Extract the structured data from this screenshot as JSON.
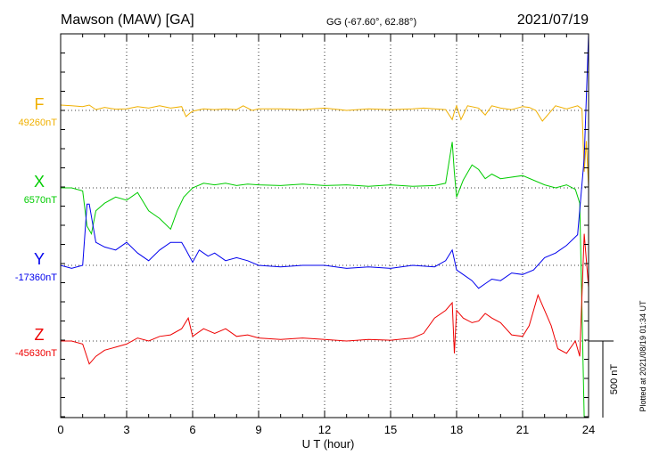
{
  "header": {
    "station": "Mawson (MAW)  [GA]",
    "coords": "GG (-67.60°,  62.88°)",
    "date": "2021/07/19"
  },
  "footer": {
    "plotted": "Plotted at 2021/08/19 01:34  UT"
  },
  "scale": {
    "label": "500 nT",
    "value_nT": 500
  },
  "chart_data": {
    "type": "line",
    "title": "Mawson (MAW)  [GA]",
    "xlabel": "U T (hour)",
    "ylabel": "",
    "xlim": [
      0,
      24
    ],
    "x_ticks": [
      "0",
      "3",
      "6",
      "9",
      "12",
      "15",
      "18",
      "21",
      "24"
    ],
    "grid": true,
    "legend": "left",
    "units": "nT",
    "series": [
      {
        "name": "F",
        "baseline_label": "49260nT",
        "baseline": 49260,
        "color": "#f0b000",
        "x": [
          0,
          0.5,
          1,
          1.3,
          1.6,
          2,
          2.5,
          3,
          3.5,
          4,
          4.5,
          5,
          5.5,
          5.7,
          5.9,
          6,
          6.5,
          7,
          7.5,
          8,
          8.3,
          8.7,
          9,
          10,
          11,
          12,
          13,
          14,
          15,
          16,
          16.5,
          17,
          17.5,
          17.8,
          17.9,
          18,
          18.2,
          18.5,
          19,
          19.3,
          19.6,
          20,
          20.5,
          21,
          21.3,
          21.6,
          21.9,
          22.2,
          22.5,
          23,
          23.5,
          23.7,
          23.8,
          23.9,
          24
        ],
        "values": [
          35,
          30,
          25,
          35,
          5,
          20,
          8,
          10,
          25,
          15,
          30,
          15,
          25,
          -40,
          -15,
          -5,
          10,
          5,
          10,
          5,
          30,
          0,
          10,
          10,
          5,
          15,
          0,
          10,
          5,
          10,
          15,
          10,
          5,
          -60,
          -10,
          30,
          -60,
          30,
          15,
          -30,
          30,
          15,
          5,
          25,
          20,
          0,
          -70,
          -20,
          30,
          10,
          30,
          10,
          -400,
          -200,
          -500
        ]
      },
      {
        "name": "X",
        "baseline_label": "6570nT",
        "baseline": 6570,
        "color": "#00cc00",
        "x": [
          0,
          0.5,
          1,
          1.2,
          1.4,
          1.6,
          2,
          2.5,
          3,
          3.5,
          4,
          4.5,
          5,
          5.3,
          5.6,
          6,
          6.5,
          7,
          7.5,
          8,
          8.5,
          9,
          10,
          11,
          12,
          13,
          14,
          15,
          16,
          17,
          17.5,
          17.8,
          17.9,
          18,
          18.3,
          18.7,
          19,
          19.3,
          19.6,
          20,
          21,
          22,
          22.5,
          23,
          23.4,
          23.6,
          23.8,
          24
        ],
        "values": [
          0,
          0,
          -20,
          -250,
          -300,
          -150,
          -100,
          -60,
          -80,
          -30,
          -150,
          -200,
          -270,
          -150,
          -60,
          0,
          30,
          20,
          30,
          15,
          25,
          20,
          15,
          25,
          15,
          20,
          10,
          20,
          10,
          15,
          30,
          300,
          100,
          -60,
          50,
          150,
          120,
          60,
          90,
          60,
          80,
          20,
          0,
          20,
          -10,
          -100,
          -2500,
          -3000
        ]
      },
      {
        "name": "Y",
        "baseline_label": "-17360nT",
        "baseline": -17360,
        "color": "#0000ee",
        "x": [
          0,
          0.5,
          1,
          1.2,
          1.3,
          1.6,
          2,
          2.5,
          3,
          3.5,
          4,
          4.5,
          5,
          5.5,
          5.7,
          6,
          6.3,
          6.7,
          7,
          7.5,
          8,
          8.5,
          9,
          10,
          11,
          12,
          13,
          14,
          15,
          16,
          17,
          17.5,
          17.8,
          18,
          18.3,
          18.7,
          19,
          19.3,
          19.6,
          20,
          20.5,
          21,
          21.5,
          22,
          22.5,
          23,
          23.5,
          23.8,
          24
        ],
        "values": [
          0,
          -20,
          0,
          400,
          400,
          150,
          120,
          100,
          150,
          80,
          30,
          100,
          150,
          150,
          100,
          20,
          100,
          60,
          80,
          30,
          50,
          30,
          0,
          -10,
          0,
          0,
          -20,
          -10,
          -20,
          0,
          -10,
          30,
          100,
          -30,
          -60,
          -100,
          -150,
          -120,
          -90,
          -100,
          -50,
          -60,
          -30,
          50,
          80,
          130,
          200,
          700,
          2500
        ]
      },
      {
        "name": "Z",
        "baseline_label": "-45630nT",
        "baseline": -45630,
        "color": "#ee0000",
        "x": [
          0,
          0.5,
          1,
          1.3,
          1.6,
          2,
          2.5,
          3,
          3.5,
          4,
          4.5,
          5,
          5.5,
          5.8,
          6,
          6.5,
          7,
          7.5,
          8,
          8.5,
          9,
          10,
          11,
          12,
          13,
          14,
          15,
          16,
          16.5,
          17,
          17.5,
          17.8,
          17.9,
          18,
          18.3,
          18.7,
          19,
          19.3,
          19.6,
          20,
          20.5,
          21,
          21.3,
          21.7,
          22,
          22.3,
          22.6,
          23,
          23.4,
          23.6,
          23.8,
          24
        ],
        "values": [
          0,
          0,
          -20,
          -150,
          -100,
          -60,
          -40,
          -20,
          20,
          0,
          30,
          40,
          80,
          150,
          30,
          80,
          50,
          80,
          30,
          40,
          20,
          10,
          20,
          10,
          0,
          10,
          5,
          20,
          50,
          150,
          200,
          250,
          -80,
          200,
          150,
          120,
          130,
          180,
          150,
          120,
          40,
          30,
          100,
          300,
          200,
          100,
          -50,
          -80,
          0,
          -100,
          700,
          350
        ]
      }
    ]
  }
}
